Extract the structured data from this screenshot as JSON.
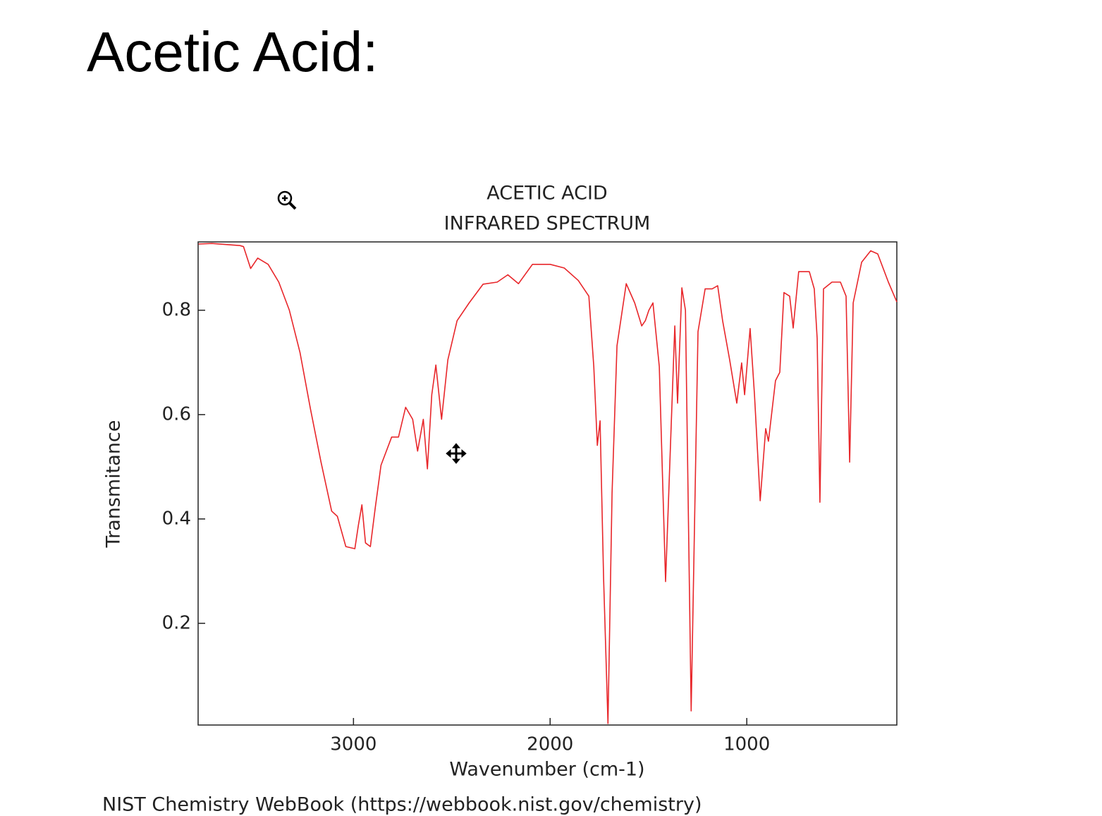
{
  "slide_title": "Acetic Acid:",
  "chart_data": {
    "type": "line",
    "title": "ACETIC ACID",
    "subtitle": "INFRARED SPECTRUM",
    "x_label": "Wavenumber (cm-1)",
    "y_label": "Transmitance",
    "x": [
      3788,
      3720,
      3577,
      3559,
      3523,
      3487,
      3434,
      3380,
      3326,
      3272,
      3219,
      3165,
      3111,
      3082,
      3039,
      2993,
      2975,
      2957,
      2939,
      2914,
      2889,
      2860,
      2806,
      2771,
      2735,
      2699,
      2674,
      2645,
      2624,
      2602,
      2581,
      2552,
      2520,
      2473,
      2412,
      2341,
      2269,
      2215,
      2161,
      2090,
      2000,
      1928,
      1857,
      1803,
      1778,
      1760,
      1746,
      1728,
      1706,
      1685,
      1660,
      1613,
      1570,
      1534,
      1516,
      1498,
      1477,
      1445,
      1413,
      1384,
      1366,
      1352,
      1330,
      1312,
      1283,
      1248,
      1212,
      1176,
      1148,
      1123,
      1087,
      1051,
      1026,
      1011,
      983,
      961,
      932,
      904,
      890,
      854,
      832,
      811,
      782,
      764,
      736,
      682,
      657,
      642,
      628,
      610,
      567,
      524,
      495,
      477,
      459,
      416,
      370,
      334,
      280,
      237
    ],
    "values": [
      0.927,
      0.928,
      0.924,
      0.922,
      0.88,
      0.9,
      0.888,
      0.854,
      0.8,
      0.719,
      0.611,
      0.509,
      0.415,
      0.405,
      0.347,
      0.343,
      0.388,
      0.427,
      0.354,
      0.347,
      0.422,
      0.503,
      0.557,
      0.557,
      0.614,
      0.591,
      0.53,
      0.591,
      0.496,
      0.638,
      0.695,
      0.591,
      0.705,
      0.78,
      0.814,
      0.85,
      0.854,
      0.868,
      0.851,
      0.888,
      0.888,
      0.881,
      0.857,
      0.827,
      0.692,
      0.541,
      0.588,
      0.286,
      0.008,
      0.449,
      0.732,
      0.851,
      0.814,
      0.77,
      0.78,
      0.8,
      0.814,
      0.692,
      0.28,
      0.584,
      0.77,
      0.622,
      0.843,
      0.8,
      0.032,
      0.759,
      0.841,
      0.841,
      0.847,
      0.78,
      0.705,
      0.622,
      0.699,
      0.638,
      0.765,
      0.638,
      0.435,
      0.573,
      0.549,
      0.665,
      0.681,
      0.834,
      0.827,
      0.766,
      0.874,
      0.874,
      0.841,
      0.746,
      0.432,
      0.841,
      0.854,
      0.854,
      0.827,
      0.509,
      0.814,
      0.892,
      0.914,
      0.908,
      0.854,
      0.816
    ],
    "color": "#e8262a",
    "xlim": [
      3790,
      237
    ],
    "xticks": [
      3000,
      2000,
      1000
    ],
    "ylim": [
      0.005,
      0.931
    ],
    "yticks": [
      0.2,
      0.4,
      0.6,
      0.8
    ]
  },
  "source": "NIST Chemistry WebBook (https://webbook.nist.gov/chemistry)"
}
